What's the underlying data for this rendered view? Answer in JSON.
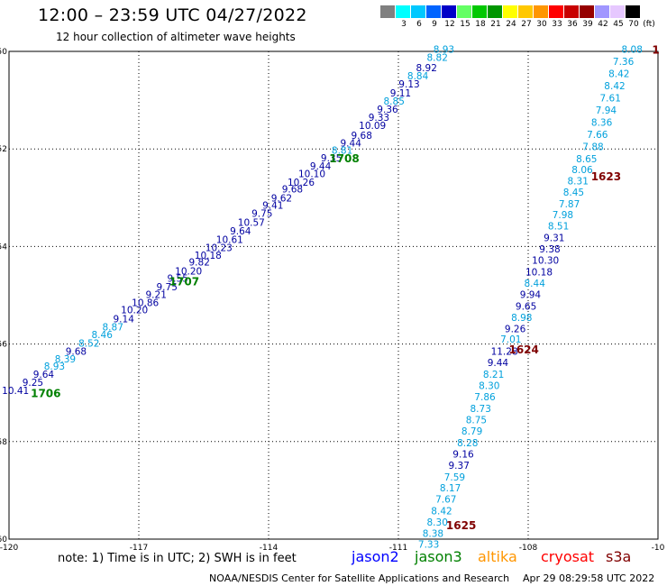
{
  "header": {
    "title": "12:00 – 23:59 UTC 04/27/2022",
    "subtitle": "12 hour collection of altimeter wave heights"
  },
  "colorbar": {
    "colors": [
      "#808080",
      "#00ffff",
      "#00c8ff",
      "#0064ff",
      "#0000c8",
      "#64ff64",
      "#00c800",
      "#009600",
      "#ffff00",
      "#ffc800",
      "#ff9600",
      "#ff0000",
      "#c80000",
      "#960000",
      "#a096ff",
      "#e6c8ff",
      "#000000"
    ],
    "labels": [
      "3",
      "6",
      "9",
      "12",
      "15",
      "18",
      "21",
      "24",
      "27",
      "30",
      "33",
      "36",
      "39",
      "42",
      "45",
      "70",
      "(ft)"
    ]
  },
  "map": {
    "lon_ticks": [
      "-120",
      "-117",
      "-114",
      "-111",
      "-108",
      "-10"
    ],
    "lat_ticks": [
      "-50",
      "-52",
      "-54",
      "-56",
      "-58",
      "-60"
    ]
  },
  "chart_data": {
    "type": "scatter",
    "x_range": [
      -120,
      -105
    ],
    "y_range": [
      -60,
      -50
    ],
    "points": [
      {
        "t": "8.93",
        "c": "#00a0dc",
        "lon": -109.95,
        "lat": -49.95
      },
      {
        "t": "8.82",
        "c": "#00a0dc",
        "lon": -110.1,
        "lat": -50.12
      },
      {
        "t": "8.92",
        "c": "#0000a0",
        "lon": -110.35,
        "lat": -50.33
      },
      {
        "t": "8.84",
        "c": "#00a0dc",
        "lon": -110.55,
        "lat": -50.5
      },
      {
        "t": "9.13",
        "c": "#0000a0",
        "lon": -110.75,
        "lat": -50.67
      },
      {
        "t": "9.11",
        "c": "#0000a0",
        "lon": -110.95,
        "lat": -50.85
      },
      {
        "t": "8.85",
        "c": "#00a0dc",
        "lon": -111.1,
        "lat": -51.02
      },
      {
        "t": "9.36",
        "c": "#0000a0",
        "lon": -111.25,
        "lat": -51.18
      },
      {
        "t": "9.33",
        "c": "#0000a0",
        "lon": -111.45,
        "lat": -51.35
      },
      {
        "t": "10.09",
        "c": "#0000a0",
        "lon": -111.6,
        "lat": -51.52
      },
      {
        "t": "9.68",
        "c": "#0000a0",
        "lon": -111.85,
        "lat": -51.72
      },
      {
        "t": "9.44",
        "c": "#0000a0",
        "lon": -112.1,
        "lat": -51.88
      },
      {
        "t": "8.81",
        "c": "#00a0dc",
        "lon": -112.3,
        "lat": -52.02
      },
      {
        "t": "9.35",
        "c": "#0000a0",
        "lon": -112.55,
        "lat": -52.18
      },
      {
        "t": "9.44",
        "c": "#0000a0",
        "lon": -112.8,
        "lat": -52.35
      },
      {
        "t": "10.10",
        "c": "#0000a0",
        "lon": -113.0,
        "lat": -52.5
      },
      {
        "t": "10.26",
        "c": "#0000a0",
        "lon": -113.25,
        "lat": -52.68
      },
      {
        "t": "9.68",
        "c": "#0000a0",
        "lon": -113.45,
        "lat": -52.82
      },
      {
        "t": "9.62",
        "c": "#0000a0",
        "lon": -113.7,
        "lat": -53.0
      },
      {
        "t": "9.41",
        "c": "#0000a0",
        "lon": -113.9,
        "lat": -53.15
      },
      {
        "t": "9.75",
        "c": "#0000a0",
        "lon": -114.15,
        "lat": -53.32
      },
      {
        "t": "10.57",
        "c": "#0000a0",
        "lon": -114.4,
        "lat": -53.5
      },
      {
        "t": "9.64",
        "c": "#0000a0",
        "lon": -114.65,
        "lat": -53.68
      },
      {
        "t": "10.61",
        "c": "#0000a0",
        "lon": -114.9,
        "lat": -53.85
      },
      {
        "t": "10.23",
        "c": "#0000a0",
        "lon": -115.15,
        "lat": -54.02
      },
      {
        "t": "10.18",
        "c": "#0000a0",
        "lon": -115.4,
        "lat": -54.18
      },
      {
        "t": "9.82",
        "c": "#0000a0",
        "lon": -115.6,
        "lat": -54.32
      },
      {
        "t": "10.20",
        "c": "#0000a0",
        "lon": -115.85,
        "lat": -54.5
      },
      {
        "t": "9.55",
        "c": "#0000a0",
        "lon": -116.1,
        "lat": -54.65
      },
      {
        "t": "9.75",
        "c": "#0000a0",
        "lon": -116.35,
        "lat": -54.82
      },
      {
        "t": "9.21",
        "c": "#0000a0",
        "lon": -116.6,
        "lat": -54.98
      },
      {
        "t": "10.86",
        "c": "#0000a0",
        "lon": -116.85,
        "lat": -55.15
      },
      {
        "t": "10.20",
        "c": "#0000a0",
        "lon": -117.1,
        "lat": -55.3
      },
      {
        "t": "9.14",
        "c": "#0000a0",
        "lon": -117.35,
        "lat": -55.48
      },
      {
        "t": "8.87",
        "c": "#00a0dc",
        "lon": -117.6,
        "lat": -55.65
      },
      {
        "t": "8.46",
        "c": "#00a0dc",
        "lon": -117.85,
        "lat": -55.8
      },
      {
        "t": "8.52",
        "c": "#00a0dc",
        "lon": -118.15,
        "lat": -55.98
      },
      {
        "t": "9.68",
        "c": "#0000a0",
        "lon": -118.45,
        "lat": -56.15
      },
      {
        "t": "8.39",
        "c": "#00a0dc",
        "lon": -118.7,
        "lat": -56.3
      },
      {
        "t": "8.93",
        "c": "#00a0dc",
        "lon": -118.95,
        "lat": -56.45
      },
      {
        "t": "9.64",
        "c": "#0000a0",
        "lon": -119.2,
        "lat": -56.62
      },
      {
        "t": "9.25",
        "c": "#0000a0",
        "lon": -119.45,
        "lat": -56.78
      },
      {
        "t": "10.41",
        "c": "#0000a0",
        "lon": -119.85,
        "lat": -56.95
      },
      {
        "t": "8.08",
        "c": "#00a0dc",
        "lon": -105.6,
        "lat": -49.95
      },
      {
        "t": "7.36",
        "c": "#00a0dc",
        "lon": -105.8,
        "lat": -50.2
      },
      {
        "t": "8.42",
        "c": "#00a0dc",
        "lon": -105.9,
        "lat": -50.45
      },
      {
        "t": "8.42",
        "c": "#00a0dc",
        "lon": -106.0,
        "lat": -50.7
      },
      {
        "t": "7.61",
        "c": "#00a0dc",
        "lon": -106.1,
        "lat": -50.95
      },
      {
        "t": "7.94",
        "c": "#00a0dc",
        "lon": -106.2,
        "lat": -51.2
      },
      {
        "t": "8.36",
        "c": "#00a0dc",
        "lon": -106.3,
        "lat": -51.45
      },
      {
        "t": "7.66",
        "c": "#00a0dc",
        "lon": -106.4,
        "lat": -51.7
      },
      {
        "t": "7.88",
        "c": "#00a0dc",
        "lon": -106.5,
        "lat": -51.95
      },
      {
        "t": "8.65",
        "c": "#00a0dc",
        "lon": -106.65,
        "lat": -52.2
      },
      {
        "t": "8.06",
        "c": "#00a0dc",
        "lon": -106.75,
        "lat": -52.42
      },
      {
        "t": "8.31",
        "c": "#00a0dc",
        "lon": -106.85,
        "lat": -52.65
      },
      {
        "t": "8.45",
        "c": "#00a0dc",
        "lon": -106.95,
        "lat": -52.88
      },
      {
        "t": "7.87",
        "c": "#00a0dc",
        "lon": -107.05,
        "lat": -53.12
      },
      {
        "t": "7.98",
        "c": "#00a0dc",
        "lon": -107.2,
        "lat": -53.35
      },
      {
        "t": "8.51",
        "c": "#00a0dc",
        "lon": -107.3,
        "lat": -53.58
      },
      {
        "t": "9.31",
        "c": "#0000a0",
        "lon": -107.4,
        "lat": -53.82
      },
      {
        "t": "9.38",
        "c": "#0000a0",
        "lon": -107.5,
        "lat": -54.05
      },
      {
        "t": "10.30",
        "c": "#0000a0",
        "lon": -107.6,
        "lat": -54.28
      },
      {
        "t": "10.18",
        "c": "#0000a0",
        "lon": -107.75,
        "lat": -54.52
      },
      {
        "t": "8.44",
        "c": "#00a0dc",
        "lon": -107.85,
        "lat": -54.75
      },
      {
        "t": "9.94",
        "c": "#0000a0",
        "lon": -107.95,
        "lat": -54.98
      },
      {
        "t": "9.65",
        "c": "#0000a0",
        "lon": -108.05,
        "lat": -55.22
      },
      {
        "t": "8.98",
        "c": "#00a0dc",
        "lon": -108.15,
        "lat": -55.45
      },
      {
        "t": "9.26",
        "c": "#0000a0",
        "lon": -108.3,
        "lat": -55.68
      },
      {
        "t": "7.01",
        "c": "#00a0dc",
        "lon": -108.4,
        "lat": -55.9
      },
      {
        "t": "11.28",
        "c": "#0000a0",
        "lon": -108.55,
        "lat": -56.15
      },
      {
        "t": "9.44",
        "c": "#0000a0",
        "lon": -108.7,
        "lat": -56.38
      },
      {
        "t": "8.21",
        "c": "#00a0dc",
        "lon": -108.8,
        "lat": -56.62
      },
      {
        "t": "8.30",
        "c": "#00a0dc",
        "lon": -108.9,
        "lat": -56.85
      },
      {
        "t": "7.86",
        "c": "#00a0dc",
        "lon": -109.0,
        "lat": -57.08
      },
      {
        "t": "8.73",
        "c": "#00a0dc",
        "lon": -109.1,
        "lat": -57.32
      },
      {
        "t": "8.75",
        "c": "#00a0dc",
        "lon": -109.2,
        "lat": -57.55
      },
      {
        "t": "8.79",
        "c": "#00a0dc",
        "lon": -109.3,
        "lat": -57.78
      },
      {
        "t": "8.28",
        "c": "#00a0dc",
        "lon": -109.4,
        "lat": -58.02
      },
      {
        "t": "9.16",
        "c": "#0000a0",
        "lon": -109.5,
        "lat": -58.25
      },
      {
        "t": "9.37",
        "c": "#0000a0",
        "lon": -109.6,
        "lat": -58.48
      },
      {
        "t": "7.59",
        "c": "#00a0dc",
        "lon": -109.7,
        "lat": -58.72
      },
      {
        "t": "8.17",
        "c": "#00a0dc",
        "lon": -109.8,
        "lat": -58.95
      },
      {
        "t": "7.67",
        "c": "#00a0dc",
        "lon": -109.9,
        "lat": -59.18
      },
      {
        "t": "8.42",
        "c": "#00a0dc",
        "lon": -110.0,
        "lat": -59.42
      },
      {
        "t": "8.30",
        "c": "#00a0dc",
        "lon": -110.1,
        "lat": -59.65
      },
      {
        "t": "8.38",
        "c": "#00a0dc",
        "lon": -110.2,
        "lat": -59.88
      },
      {
        "t": "7.33",
        "c": "#00a0dc",
        "lon": -110.3,
        "lat": -60.1
      }
    ],
    "time_labels": [
      {
        "t": "1708",
        "c": "#008000",
        "lon": -112.25,
        "lat": -52.18
      },
      {
        "t": "1707",
        "c": "#008000",
        "lon": -115.95,
        "lat": -54.7
      },
      {
        "t": "1706",
        "c": "#008000",
        "lon": -119.15,
        "lat": -57.0
      },
      {
        "t": "1623",
        "c": "#800000",
        "lon": -106.2,
        "lat": -52.55
      },
      {
        "t": "1624",
        "c": "#800000",
        "lon": -108.1,
        "lat": -56.1
      },
      {
        "t": "1625",
        "c": "#800000",
        "lon": -109.55,
        "lat": -59.7
      },
      {
        "t": "1",
        "c": "#800000",
        "lon": -105.05,
        "lat": -49.95
      }
    ]
  },
  "note": "note:  1) Time is in UTC;  2) SWH is in feet",
  "satellites": [
    {
      "name": "jason2",
      "color": "#0000ff"
    },
    {
      "name": "jason3",
      "color": "#008000"
    },
    {
      "name": "altika",
      "color": "#ff9600"
    },
    {
      "name": "cryosat",
      "color": "#ff0000"
    },
    {
      "name": "s3a",
      "color": "#800000"
    }
  ],
  "footer": {
    "credit": "NOAA/NESDIS Center for Satellite Applications and Research",
    "timestamp": "Apr 29 08:29:58 UTC 2022"
  }
}
